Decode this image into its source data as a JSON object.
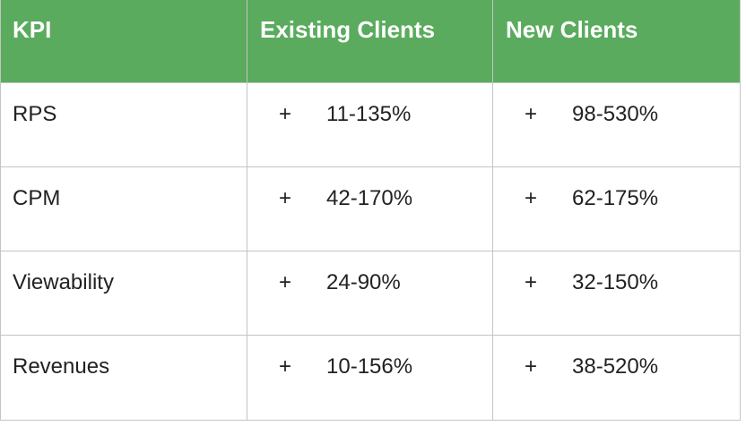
{
  "table": {
    "header": [
      "KPI",
      "Existing Clients",
      "New Clients"
    ],
    "rows": [
      [
        "RPS",
        {
          "sign": "+",
          "value": "11-135%"
        },
        {
          "sign": "+",
          "value": "98-530%"
        }
      ],
      [
        "CPM",
        {
          "sign": "+",
          "value": "42-170%"
        },
        {
          "sign": "+",
          "value": "62-175%"
        }
      ],
      [
        "Viewability",
        {
          "sign": "+",
          "value": "24-90%"
        },
        {
          "sign": "+",
          "value": "32-150%"
        }
      ],
      [
        "Revenues",
        {
          "sign": "+",
          "value": "10-156%"
        },
        {
          "sign": "+",
          "value": "38-520%"
        }
      ]
    ]
  }
}
